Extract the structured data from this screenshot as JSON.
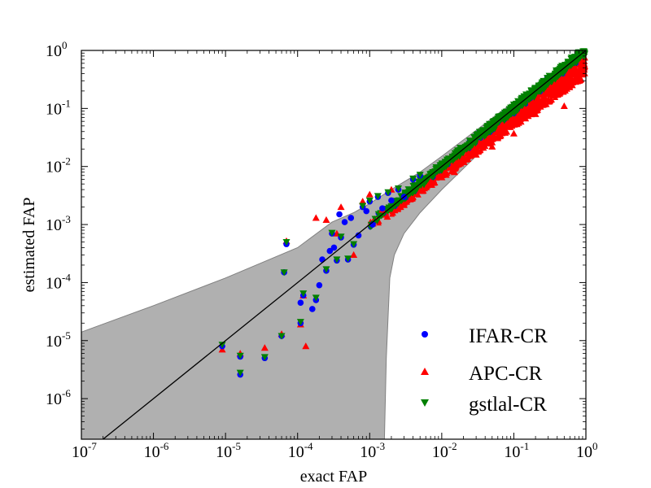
{
  "chart_data": {
    "type": "scatter",
    "title": "",
    "xlabel": "exact FAP",
    "ylabel": "estimated FAP",
    "xscale": "log",
    "yscale": "log",
    "xlim": [
      1e-07,
      1
    ],
    "ylim": [
      2e-07,
      1
    ],
    "x_ticks": [
      {
        "base": "10",
        "exp": "-7"
      },
      {
        "base": "10",
        "exp": "-6"
      },
      {
        "base": "10",
        "exp": "-5"
      },
      {
        "base": "10",
        "exp": "-4"
      },
      {
        "base": "10",
        "exp": "-3"
      },
      {
        "base": "10",
        "exp": "-2"
      },
      {
        "base": "10",
        "exp": "-1"
      },
      {
        "base": "10",
        "exp": "0"
      }
    ],
    "y_ticks": [
      {
        "base": "10",
        "exp": "-6"
      },
      {
        "base": "10",
        "exp": "-5"
      },
      {
        "base": "10",
        "exp": "-4"
      },
      {
        "base": "10",
        "exp": "-3"
      },
      {
        "base": "10",
        "exp": "-2"
      },
      {
        "base": "10",
        "exp": "-1"
      },
      {
        "base": "10",
        "exp": "0"
      }
    ],
    "grid": false,
    "legend_position": "bottom-right",
    "diagonal": {
      "x": [
        1e-07,
        1
      ],
      "y": [
        1e-07,
        1
      ],
      "color": "#000000"
    },
    "confidence_band": {
      "color": "#b0b0b0",
      "upper": {
        "x": [
          1e-07,
          1e-06,
          1e-05,
          0.0001,
          0.0003,
          0.0006,
          0.001,
          0.002,
          0.005,
          0.01,
          0.1,
          1
        ],
        "y": [
          1.4e-05,
          4e-05,
          0.00012,
          0.0004,
          0.0011,
          0.0016,
          0.0023,
          0.004,
          0.008,
          0.015,
          0.13,
          1
        ]
      },
      "lower": {
        "x": [
          1e-07,
          0.0016,
          0.0017,
          0.0019,
          0.0022,
          0.003,
          0.005,
          0.01,
          0.1,
          1
        ],
        "y": [
          2e-07,
          2e-07,
          5e-06,
          0.00012,
          0.0003,
          0.0007,
          0.0016,
          0.004,
          0.065,
          0.99
        ]
      }
    },
    "series": [
      {
        "name": "IFAR-CR",
        "color": "#0000ff",
        "marker": "circle",
        "x": [
          9e-06,
          1.6e-05,
          1.6e-05,
          3.5e-05,
          6e-05,
          6.5e-05,
          7e-05,
          0.00011,
          0.00011,
          0.00012,
          0.00016,
          0.00018,
          0.0002,
          0.00022,
          0.00025,
          0.00028,
          0.0003,
          0.00032,
          0.00035,
          0.00038,
          0.0004,
          0.00045,
          0.0005,
          0.00055,
          0.0006,
          0.0007,
          0.0008,
          0.0009,
          0.001,
          0.0011,
          0.0013,
          0.0015,
          0.0018,
          0.002,
          0.0025,
          0.003,
          0.004,
          0.005
        ],
        "y": [
          8e-06,
          5.3e-06,
          2.6e-06,
          5e-06,
          1.2e-05,
          0.00015,
          0.00046,
          2e-05,
          4.5e-05,
          6e-05,
          3.5e-05,
          5e-05,
          9e-05,
          0.00025,
          0.00016,
          0.00035,
          0.0007,
          0.0004,
          0.00024,
          0.0015,
          0.0006,
          0.0011,
          0.00025,
          0.0013,
          0.00045,
          0.00065,
          0.002,
          0.0017,
          0.0025,
          0.001,
          0.003,
          0.0019,
          0.0035,
          0.0026,
          0.004,
          0.003,
          0.006,
          0.007
        ]
      },
      {
        "name": "APC-CR",
        "color": "#ff0000",
        "marker": "triangle-up",
        "x": [
          9e-06,
          1.6e-05,
          3.5e-05,
          6e-05,
          7e-05,
          0.00011,
          0.00012,
          0.00013,
          0.00018,
          0.00025,
          0.00035,
          0.0004,
          0.0006,
          0.0008,
          0.001,
          0.0015,
          0.002,
          0.003,
          0.005,
          0.007,
          0.01,
          0.015,
          0.02,
          0.03,
          0.05,
          0.1,
          0.2,
          0.5,
          0.8
        ],
        "y": [
          7e-06,
          6e-06,
          7.5e-06,
          1.3e-05,
          0.00052,
          1.9e-05,
          6e-05,
          8e-06,
          0.0013,
          0.0012,
          0.0007,
          0.002,
          0.0003,
          0.0025,
          0.0033,
          0.0018,
          0.004,
          0.0022,
          0.0038,
          0.0055,
          0.0065,
          0.008,
          0.013,
          0.016,
          0.022,
          0.037,
          0.08,
          0.11,
          0.3
        ]
      },
      {
        "name": "gstlal-CR",
        "color": "#008000",
        "marker": "triangle-down",
        "x": [
          9e-06,
          1.6e-05,
          1.6e-05,
          3.5e-05,
          6e-05,
          6.5e-05,
          7e-05,
          0.00011,
          0.00012,
          0.00018,
          0.00025,
          0.0003,
          0.00035,
          0.0004,
          0.0005,
          0.0006,
          0.0008,
          0.001,
          0.0013,
          0.0018,
          0.0025,
          0.004,
          0.005
        ],
        "y": [
          8.5e-06,
          5.5e-06,
          2.8e-06,
          5.2e-06,
          1.2e-05,
          0.00015,
          0.0005,
          2.1e-05,
          6.5e-05,
          5.5e-05,
          0.00017,
          0.00072,
          0.00025,
          0.00062,
          0.00026,
          0.00046,
          0.0021,
          0.0026,
          0.0031,
          0.0036,
          0.0042,
          0.0062,
          0.0072
        ]
      }
    ]
  }
}
